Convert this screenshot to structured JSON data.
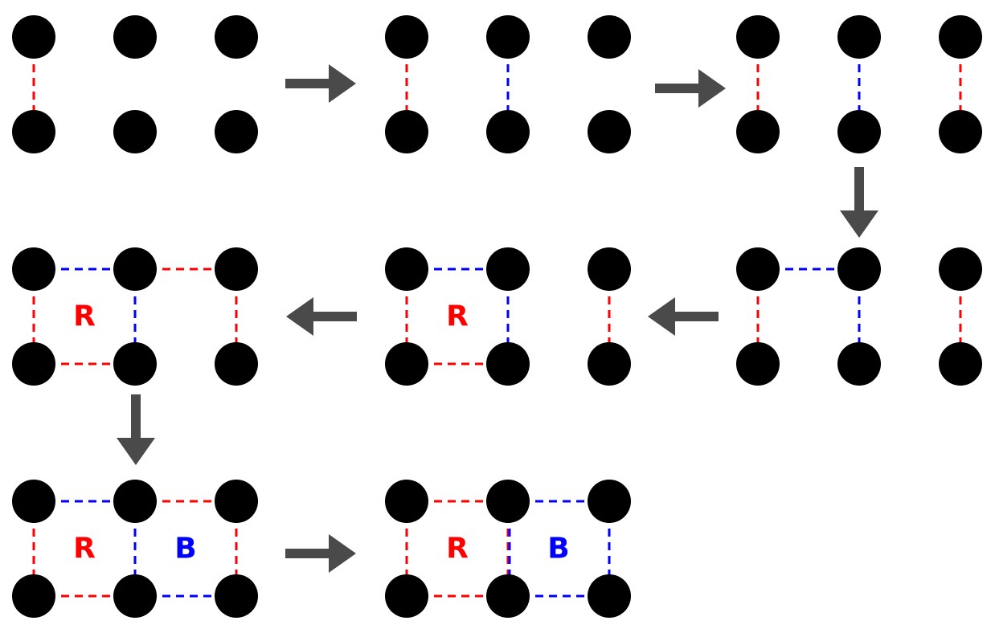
{
  "colors": {
    "red": "#ff0000",
    "blue": "#0000ff",
    "node": "#000000",
    "arrow": "#4a4a4a"
  },
  "panels": [
    {
      "id": "step-1",
      "edges": [
        {
          "from": "tl",
          "to": "bl",
          "color": "red"
        }
      ],
      "labels": []
    },
    {
      "id": "step-2",
      "edges": [
        {
          "from": "tl",
          "to": "bl",
          "color": "red"
        },
        {
          "from": "tm",
          "to": "bm",
          "color": "blue"
        }
      ],
      "labels": []
    },
    {
      "id": "step-3",
      "edges": [
        {
          "from": "tl",
          "to": "bl",
          "color": "red"
        },
        {
          "from": "tm",
          "to": "bm",
          "color": "blue"
        },
        {
          "from": "tr",
          "to": "br",
          "color": "red"
        }
      ],
      "labels": []
    },
    {
      "id": "step-4",
      "edges": [
        {
          "from": "tl",
          "to": "bl",
          "color": "red"
        },
        {
          "from": "tl",
          "to": "tm",
          "color": "blue"
        },
        {
          "from": "tm",
          "to": "bm",
          "color": "blue"
        },
        {
          "from": "tr",
          "to": "br",
          "color": "red"
        }
      ],
      "labels": []
    },
    {
      "id": "step-5",
      "edges": [
        {
          "from": "tl",
          "to": "bl",
          "color": "red"
        },
        {
          "from": "tl",
          "to": "tm",
          "color": "blue"
        },
        {
          "from": "tm",
          "to": "bm",
          "color": "blue"
        },
        {
          "from": "bl",
          "to": "bm",
          "color": "red"
        },
        {
          "from": "tr",
          "to": "br",
          "color": "red"
        }
      ],
      "labels": [
        {
          "cell": "left",
          "text": "R",
          "color": "red"
        }
      ]
    },
    {
      "id": "step-6",
      "edges": [
        {
          "from": "tl",
          "to": "bl",
          "color": "red"
        },
        {
          "from": "tl",
          "to": "tm",
          "color": "blue"
        },
        {
          "from": "tm",
          "to": "bm",
          "color": "blue"
        },
        {
          "from": "bl",
          "to": "bm",
          "color": "red"
        },
        {
          "from": "tm",
          "to": "tr",
          "color": "red"
        },
        {
          "from": "tr",
          "to": "br",
          "color": "red"
        }
      ],
      "labels": [
        {
          "cell": "left",
          "text": "R",
          "color": "red"
        }
      ]
    },
    {
      "id": "step-7",
      "edges": [
        {
          "from": "tl",
          "to": "bl",
          "color": "red"
        },
        {
          "from": "tl",
          "to": "tm",
          "color": "blue"
        },
        {
          "from": "tm",
          "to": "bm",
          "color": "blue"
        },
        {
          "from": "bl",
          "to": "bm",
          "color": "red"
        },
        {
          "from": "tm",
          "to": "tr",
          "color": "red"
        },
        {
          "from": "tr",
          "to": "br",
          "color": "red"
        },
        {
          "from": "bm",
          "to": "br",
          "color": "blue"
        }
      ],
      "labels": [
        {
          "cell": "left",
          "text": "R",
          "color": "red"
        },
        {
          "cell": "right",
          "text": "B",
          "color": "blue"
        }
      ]
    },
    {
      "id": "step-8",
      "edges": [
        {
          "from": "tl",
          "to": "bl",
          "color": "red"
        },
        {
          "from": "tl",
          "to": "tm",
          "color": "red"
        },
        {
          "from": "bl",
          "to": "bm",
          "color": "red"
        },
        {
          "from": "tm",
          "to": "bm",
          "color": "red"
        },
        {
          "from": "tm",
          "to": "bm",
          "color": "blue",
          "offset": 1
        },
        {
          "from": "tm",
          "to": "tr",
          "color": "blue"
        },
        {
          "from": "tr",
          "to": "br",
          "color": "blue"
        },
        {
          "from": "bm",
          "to": "br",
          "color": "blue"
        }
      ],
      "labels": [
        {
          "cell": "left",
          "text": "R",
          "color": "red"
        },
        {
          "cell": "right",
          "text": "B",
          "color": "blue"
        }
      ]
    }
  ],
  "arrows": [
    {
      "between": [
        "step-1",
        "step-2"
      ],
      "direction": "right"
    },
    {
      "between": [
        "step-2",
        "step-3"
      ],
      "direction": "right"
    },
    {
      "between": [
        "step-3",
        "step-4"
      ],
      "direction": "down"
    },
    {
      "between": [
        "step-4",
        "step-5"
      ],
      "direction": "left"
    },
    {
      "between": [
        "step-5",
        "step-6"
      ],
      "direction": "left"
    },
    {
      "between": [
        "step-6",
        "step-7"
      ],
      "direction": "down"
    },
    {
      "between": [
        "step-7",
        "step-8"
      ],
      "direction": "right"
    }
  ]
}
